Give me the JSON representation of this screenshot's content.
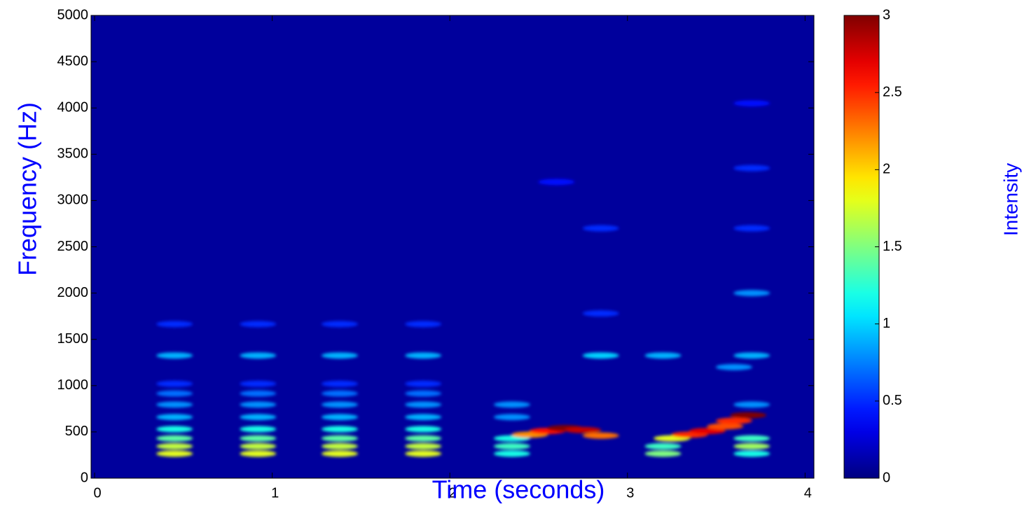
{
  "chart_data": {
    "type": "spectrogram",
    "x_label": "Time (seconds)",
    "y_label": "Frequency (Hz)",
    "colorbar_label": "Intensity",
    "colormap": "jet",
    "background_color": "#00009c",
    "xlim": [
      -0.02,
      4.05
    ],
    "xticks": [
      0,
      1,
      2,
      3,
      4
    ],
    "ylim": [
      0,
      5000
    ],
    "yticks": [
      0,
      500,
      1000,
      1500,
      2000,
      2500,
      3000,
      3500,
      4000,
      4500,
      5000
    ],
    "clim": [
      0,
      3
    ],
    "cticks": [
      0,
      0.5,
      1,
      1.5,
      2,
      2.5,
      3
    ],
    "x": [
      0.45,
      0.45,
      0.45,
      0.45,
      0.45,
      0.45,
      0.45,
      0.45,
      0.45,
      0.45,
      0.92,
      0.92,
      0.92,
      0.92,
      0.92,
      0.92,
      0.92,
      0.92,
      0.92,
      0.92,
      1.38,
      1.38,
      1.38,
      1.38,
      1.38,
      1.38,
      1.38,
      1.38,
      1.38,
      1.38,
      1.85,
      1.85,
      1.85,
      1.85,
      1.85,
      1.85,
      1.85,
      1.85,
      1.85,
      1.85,
      2.35,
      2.35,
      2.35,
      2.35,
      2.35,
      2.85,
      2.85,
      2.85,
      2.6,
      2.45,
      2.55,
      2.65,
      2.75,
      2.85,
      3.2,
      3.2,
      3.25,
      3.7,
      3.7,
      3.7,
      3.7,
      3.2,
      3.7,
      3.7,
      3.7,
      3.7,
      3.7,
      3.35,
      3.45,
      3.55,
      3.6,
      3.68,
      3.6
    ],
    "y": [
      265,
      345,
      430,
      530,
      660,
      795,
      915,
      1020,
      1325,
      1665,
      265,
      345,
      430,
      530,
      660,
      795,
      915,
      1020,
      1325,
      1665,
      265,
      345,
      430,
      530,
      660,
      795,
      915,
      1020,
      1325,
      1665,
      265,
      345,
      430,
      530,
      660,
      795,
      915,
      1020,
      1325,
      1665,
      265,
      345,
      430,
      660,
      795,
      1325,
      1780,
      2700,
      3200,
      470,
      510,
      540,
      520,
      460,
      265,
      345,
      430,
      265,
      345,
      430,
      795,
      1325,
      1325,
      2000,
      2700,
      3350,
      4050,
      470,
      510,
      560,
      620,
      680,
      1200
    ],
    "values": [
      1.8,
      1.7,
      1.4,
      1.2,
      0.9,
      0.8,
      0.7,
      0.5,
      0.9,
      0.5,
      1.8,
      1.7,
      1.4,
      1.2,
      0.9,
      0.8,
      0.7,
      0.5,
      0.9,
      0.5,
      1.8,
      1.7,
      1.4,
      1.2,
      0.9,
      0.8,
      0.7,
      0.5,
      0.9,
      0.5,
      1.8,
      1.7,
      1.4,
      1.2,
      0.9,
      0.8,
      0.7,
      0.5,
      0.9,
      0.5,
      1.2,
      1.3,
      1.2,
      0.8,
      0.8,
      1.0,
      0.5,
      0.5,
      0.4,
      2.2,
      2.6,
      3.0,
      2.8,
      2.3,
      1.5,
      1.3,
      1.8,
      1.2,
      1.6,
      1.3,
      0.8,
      0.9,
      0.9,
      0.8,
      0.5,
      0.5,
      0.4,
      2.5,
      2.7,
      2.4,
      2.5,
      3.0,
      0.8
    ]
  }
}
